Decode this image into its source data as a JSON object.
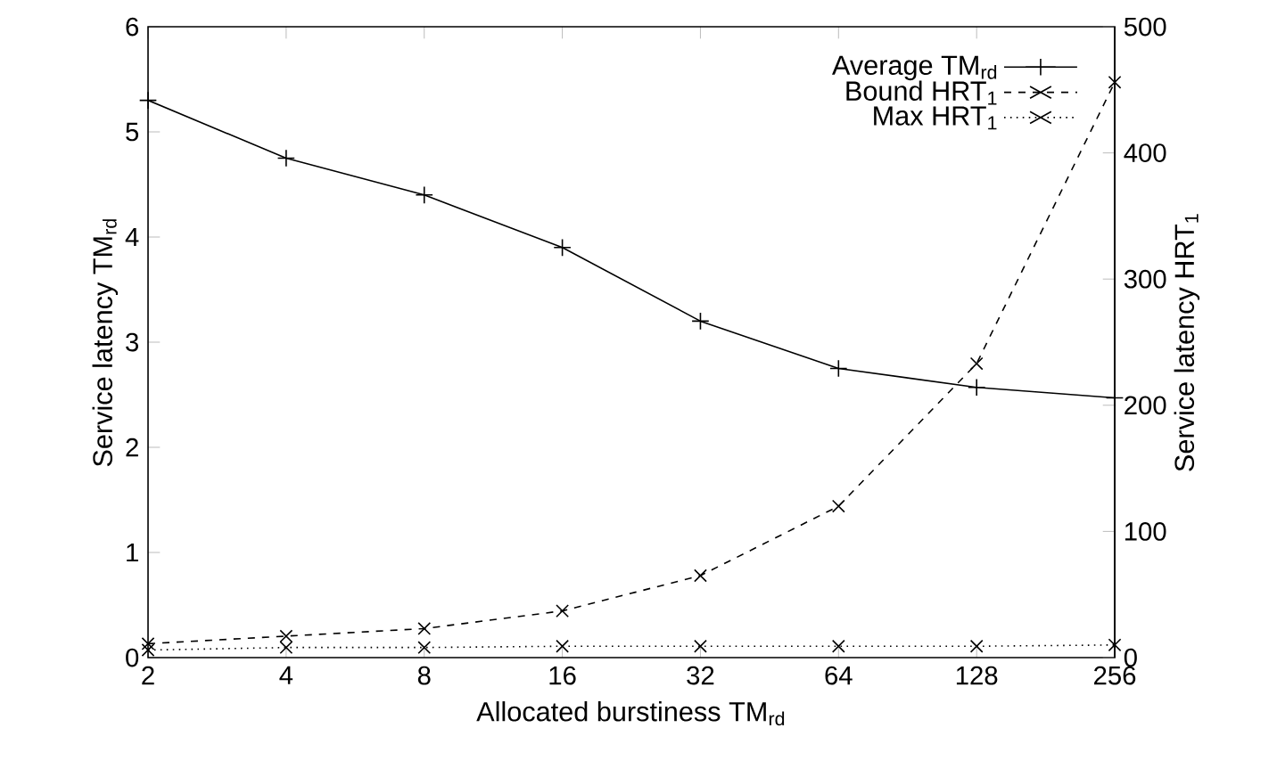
{
  "chart_data": {
    "type": "line",
    "xlabel": "Allocated burstiness TM$_{rd}$",
    "ylabel": "Service latency TM$_{rd}$",
    "y2label": "Service latency HRT$_{1}$",
    "x": [
      2,
      4,
      8,
      16,
      32,
      64,
      128,
      256
    ],
    "log": "x",
    "xlim": [
      2,
      256
    ],
    "xticks": [
      2,
      4,
      8,
      16,
      32,
      64,
      128,
      256
    ],
    "ylim": [
      0,
      6
    ],
    "yticks": [
      0,
      1,
      2,
      3,
      4,
      5,
      6
    ],
    "y2lim": [
      0,
      500
    ],
    "y2ticks": [
      0,
      100,
      200,
      300,
      400,
      500
    ],
    "legend": "top right",
    "grid": false,
    "series": [
      {
        "name": "Average TM$_{rd}$",
        "color": "#000000",
        "marker": "plus",
        "line_style": "solid",
        "values": [
          5.3,
          4.75,
          4.4,
          3.9,
          3.2,
          2.75,
          2.57,
          2.47
        ]
      },
      {
        "name": "Bound HRT$_{1}$",
        "color": "#000000",
        "marker": "cross",
        "line_style": "dashed",
        "axis": "y2",
        "values": [
          11,
          17,
          23,
          37,
          65,
          120,
          233,
          456
        ]
      },
      {
        "name": "Max HRT$_{1}$",
        "color": "#000000",
        "line_style": "dotted",
        "marker": "cross",
        "axis": "y2",
        "values": [
          6,
          8,
          8,
          9,
          9,
          9,
          9,
          10
        ]
      }
    ]
  }
}
